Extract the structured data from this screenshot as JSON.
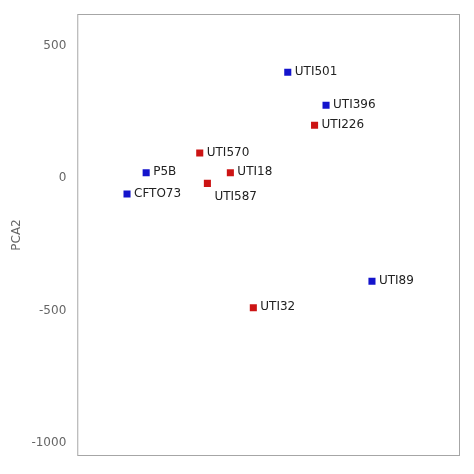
{
  "chart_data": {
    "type": "scatter",
    "ylabel": "PCA2",
    "labels": [
      "UTI501",
      "UTI396",
      "UTI226",
      "UTI570",
      "UTI18",
      "UTI587",
      "P5B",
      "CFTO73",
      "UTI89",
      "UTI32"
    ],
    "x": [
      0.55,
      0.65,
      0.62,
      0.32,
      0.4,
      0.34,
      0.18,
      0.13,
      0.77,
      0.46
    ],
    "values": [
      400,
      275,
      200,
      95,
      20,
      -20,
      20,
      -60,
      -390,
      -490
    ],
    "colors": [
      "#1414CC",
      "#1414CC",
      "#CC1414",
      "#CC1414",
      "#CC1414",
      "#CC1414",
      "#1414CC",
      "#1414CC",
      "#1414CC",
      "#CC1414"
    ],
    "marker": "square",
    "xlim": [
      0.0,
      1.0
    ],
    "ylim": [
      -1050,
      620
    ],
    "yticks": [
      500,
      0,
      -500,
      -1000
    ],
    "tick_labels": "y",
    "grid": false
  }
}
